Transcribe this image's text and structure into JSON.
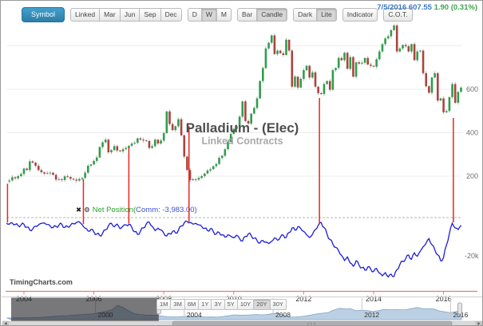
{
  "toolbar": {
    "symbol": "Symbol",
    "contract_group": [
      "Linked",
      "Mar",
      "Jun",
      "Sep",
      "Dec"
    ],
    "period_group": {
      "items": [
        "D",
        "W",
        "M"
      ],
      "selected": "W"
    },
    "style_group": {
      "items": [
        "Bar",
        "Candle"
      ],
      "selected": "Candle"
    },
    "theme_group": {
      "items": [
        "Dark",
        "Lite"
      ],
      "selected": "Lite"
    },
    "indicator": "Indicator",
    "cot": "C.O.T."
  },
  "quote": {
    "date": "7/5/2016",
    "price": "607.55",
    "change": "1.90 (0.31%)"
  },
  "chart": {
    "title": "Palladium - (Elec)",
    "subtitle": "Linked Contracts",
    "watermark": "TimingCharts.com",
    "indicator_label": {
      "icons": [
        "close-x",
        "gear"
      ],
      "green": "Net Position(",
      "blue": "Comm: -3,983.00)"
    }
  },
  "range_buttons": {
    "items": [
      "1M",
      "3M",
      "6M",
      "1Y",
      "3Y",
      "5Y",
      "10Y",
      "20Y",
      "30Y"
    ],
    "selected": "20Y"
  },
  "chart_data": {
    "type": "candlestick",
    "title": "Palladium - (Elec)",
    "subtitle": "Linked Contracts",
    "legend": "Net Position(Comm: -3,983.00)",
    "grid": "horizontal",
    "price_axis": {
      "side": "right",
      "ticks": [
        {
          "v": 200,
          "label": "200"
        },
        {
          "v": 400,
          "label": "400"
        },
        {
          "v": 600,
          "label": "600"
        }
      ],
      "gridlines": [
        200,
        400,
        600,
        800
      ],
      "range": [
        130,
        950
      ]
    },
    "indicator_axis": {
      "side": "right",
      "ticks": [
        {
          "v": -20,
          "label": "-20k"
        }
      ],
      "zero_line": "dashed"
    },
    "x_axis": {
      "ticks": [
        2004,
        2006,
        2008,
        2010,
        2012,
        2014,
        2016
      ],
      "range": [
        2003.5,
        2016.54
      ]
    },
    "series": [
      {
        "name": "palladium-price",
        "type": "candlestick",
        "t0": 2003.5,
        "dt_months": 1,
        "close": [
          175,
          180,
          195,
          190,
          200,
          210,
          235,
          228,
          268,
          262,
          248,
          228,
          218,
          212,
          214,
          216,
          206,
          184,
          186,
          182,
          199,
          196,
          188,
          184,
          179,
          187,
          192,
          216,
          248,
          254,
          270,
          286,
          334,
          356,
          368,
          310,
          320,
          338,
          318,
          314,
          324,
          330,
          340,
          350,
          354,
          374,
          368,
          364,
          362,
          330,
          338,
          368,
          350,
          364,
          398,
          498,
          440,
          412,
          430,
          462,
          388,
          290,
          228,
          182,
          186,
          184,
          192,
          200,
          212,
          226,
          232,
          246,
          256,
          284,
          294,
          324,
          358,
          394,
          418,
          430,
          474,
          544,
          454,
          442,
          488,
          514,
          558,
          638,
          698,
          788,
          814,
          848,
          762,
          778,
          766,
          758,
          828,
          778,
          612,
          658,
          608,
          648,
          688,
          708,
          654,
          678,
          612,
          582,
          578,
          624,
          638,
          598,
          688,
          698,
          744,
          734,
          768,
          694,
          748,
          658,
          724,
          718,
          722,
          744,
          714,
          708,
          704,
          738,
          774,
          808,
          834,
          844,
          872,
          894,
          774,
          788,
          804,
          798,
          774,
          808,
          734,
          774,
          778,
          674,
          614,
          584,
          654,
          674,
          548,
          558,
          494,
          500,
          564,
          624,
          538,
          588,
          607.55
        ]
      },
      {
        "name": "net-position-commercials-k",
        "type": "line",
        "t0": 2003.5,
        "dt_months": 1,
        "values": [
          -3.0,
          -3.4,
          -2.8,
          -3.6,
          -4.2,
          -3.8,
          -3.5,
          -5.0,
          -6.5,
          -6.0,
          -4.5,
          -3.8,
          -3.0,
          -2.8,
          -3.6,
          -4.4,
          -5.2,
          -4.6,
          -4.0,
          -3.4,
          -5.2,
          -4.8,
          -3.9,
          -3.2,
          -2.6,
          -2.2,
          -3.8,
          -5.5,
          -7.0,
          -6.2,
          -7.5,
          -8.6,
          -9.4,
          -8.2,
          -6.4,
          -4.2,
          -3.0,
          -4.8,
          -3.4,
          -5.8,
          -4.4,
          -3.8,
          -3.6,
          -5.0,
          -7.4,
          -8.8,
          -7.0,
          -5.4,
          -3.2,
          -2.4,
          -4.6,
          -6.8,
          -5.6,
          -6.4,
          -8.2,
          -9.6,
          -8.4,
          -7.2,
          -8.0,
          -6.6,
          -4.4,
          -2.8,
          -2.0,
          -2.6,
          -3.4,
          -3.0,
          -3.8,
          -4.6,
          -5.6,
          -6.8,
          -5.8,
          -7.4,
          -8.6,
          -7.8,
          -9.0,
          -10.2,
          -9.0,
          -9.8,
          -10.6,
          -9.2,
          -11.0,
          -12.2,
          -9.8,
          -8.4,
          -9.4,
          -10.8,
          -12.0,
          -13.2,
          -12.0,
          -12.8,
          -13.6,
          -12.4,
          -10.6,
          -11.8,
          -10.2,
          -9.2,
          -10.4,
          -7.8,
          -5.4,
          -6.6,
          -4.8,
          -5.8,
          -7.2,
          -9.0,
          -10.4,
          -8.8,
          -6.2,
          -4.0,
          -2.6,
          -5.2,
          -8.6,
          -11.4,
          -13.8,
          -15.6,
          -17.4,
          -19.8,
          -22.4,
          -20.6,
          -23.8,
          -25.4,
          -22.6,
          -24.8,
          -26.2,
          -27.4,
          -25.8,
          -27.0,
          -28.2,
          -26.6,
          -29.0,
          -30.4,
          -28.8,
          -31.0,
          -29.6,
          -30.8,
          -27.2,
          -24.6,
          -22.8,
          -21.4,
          -19.6,
          -21.8,
          -18.4,
          -20.2,
          -17.6,
          -15.2,
          -13.4,
          -11.0,
          -14.2,
          -16.8,
          -19.4,
          -22.6,
          -20.8,
          -14.4,
          -8.2,
          -2.9,
          -5.4,
          -6.2,
          -3.983
        ]
      },
      {
        "name": "navigator-overview",
        "type": "area",
        "t0": 1996.0,
        "dt_years": 0.25,
        "values": [
          120,
          124,
          128,
          132,
          140,
          155,
          170,
          185,
          220,
          250,
          270,
          290,
          330,
          355,
          380,
          405,
          445,
          520,
          620,
          720,
          1040,
          880,
          640,
          420,
          370,
          340,
          330,
          310,
          250,
          210,
          185,
          200,
          235,
          255,
          220,
          210,
          186,
          192,
          182,
          230,
          280,
          350,
          325,
          322,
          345,
          368,
          350,
          362,
          450,
          440,
          300,
          184,
          198,
          228,
          270,
          350,
          425,
          470,
          520,
          700,
          820,
          770,
          790,
          640,
          690,
          650,
          590,
          650,
          745,
          720,
          722,
          718,
          720,
          800,
          880,
          790,
          790,
          770,
          630,
          560,
          500,
          590,
          607
        ]
      }
    ],
    "event_vlines": [
      {
        "t": 2003.53,
        "top_price": 165
      },
      {
        "t": 2005.7,
        "top_price": 186
      },
      {
        "t": 2007.0,
        "top_price": 333
      },
      {
        "t": 2008.72,
        "top_price": 430
      },
      {
        "t": 2012.45,
        "top_price": 560
      },
      {
        "t": 2016.28,
        "top_price": 468
      }
    ],
    "navigator_axis": {
      "ticks": [
        2000,
        2004,
        2008,
        2012,
        2016
      ],
      "selected_mask": [
        1996.2,
        2002.85
      ]
    },
    "colors": {
      "up": "#2e9e4a",
      "down": "#aa443d",
      "wick": "#9a9a9a",
      "net_line": "#1c1cd8",
      "event_line": "#e8261f",
      "x_axis": "#e57d72",
      "grid": "#ececec",
      "nav_fill": "#bcd0e4",
      "nav_line": "#7fa3c7",
      "mask": "rgba(30,30,34,0.6)"
    }
  }
}
